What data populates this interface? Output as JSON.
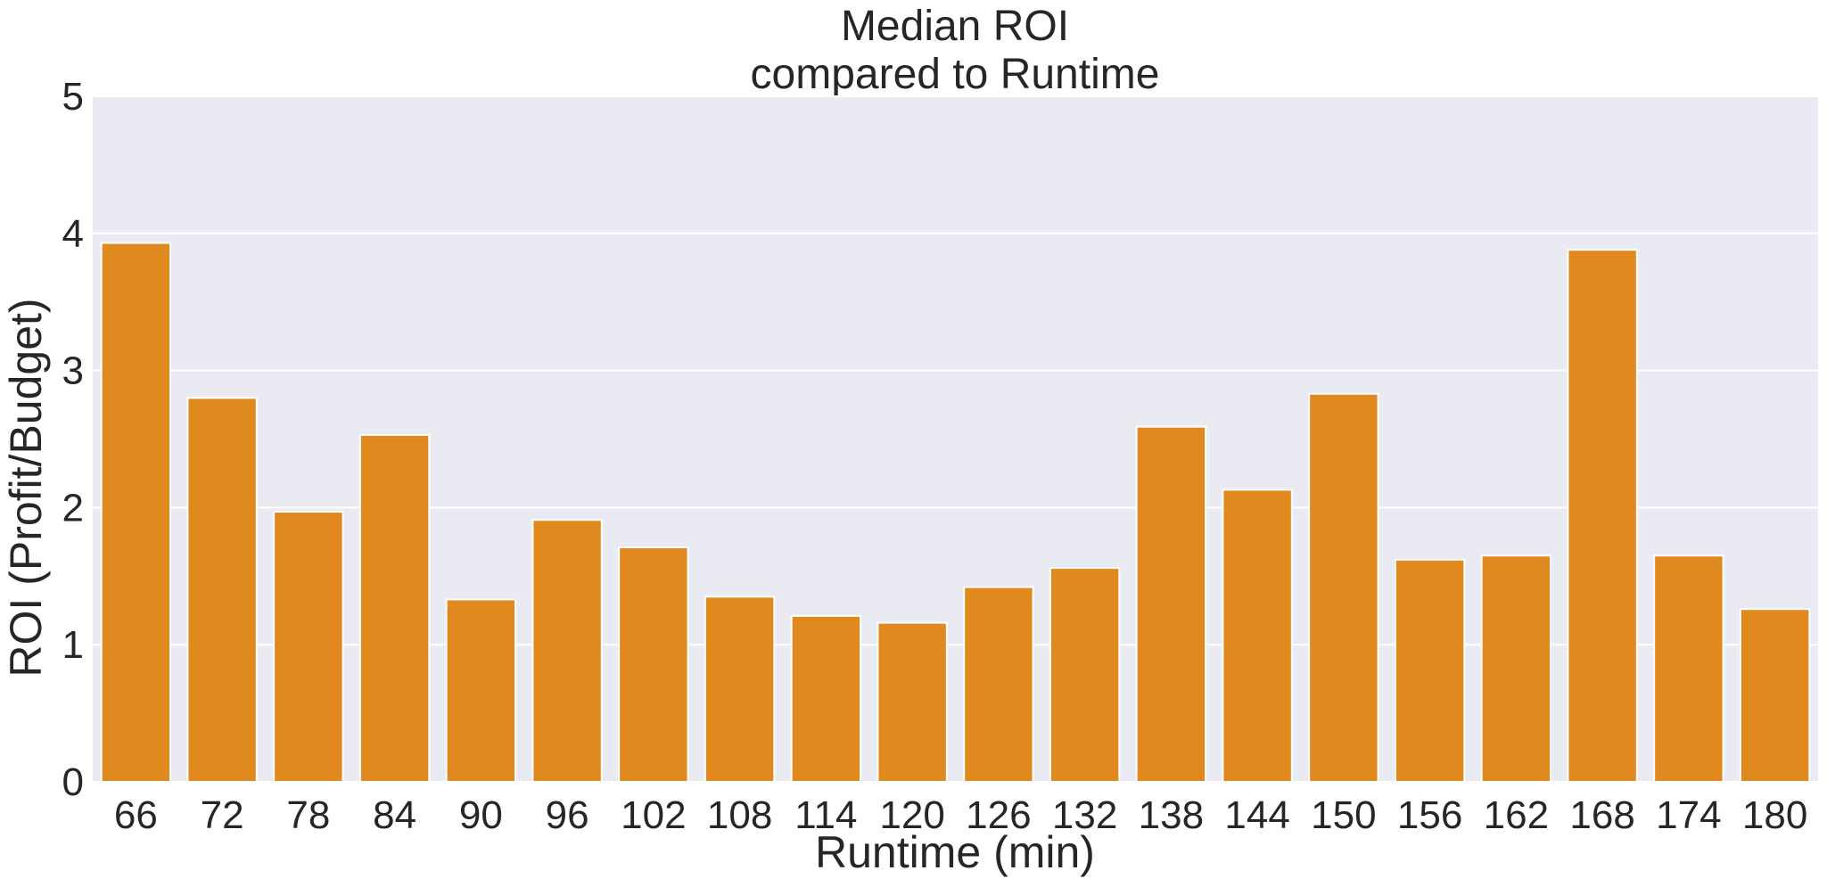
{
  "chart_data": {
    "type": "bar",
    "title_lines": [
      "Median ROI",
      "compared to Runtime"
    ],
    "xlabel": "Runtime (min)",
    "ylabel": "ROI (Profit/Budget)",
    "ylim": [
      0,
      5
    ],
    "yticks": [
      0,
      1,
      2,
      3,
      4,
      5
    ],
    "grid": true,
    "bar_color": "#e0891f",
    "background_color": "#eaeaf2",
    "categories": [
      "66",
      "72",
      "78",
      "84",
      "90",
      "96",
      "102",
      "108",
      "114",
      "120",
      "126",
      "132",
      "138",
      "144",
      "150",
      "156",
      "162",
      "168",
      "174",
      "180"
    ],
    "values": [
      3.93,
      2.8,
      1.97,
      2.53,
      1.33,
      1.91,
      1.71,
      1.35,
      1.21,
      1.16,
      1.42,
      1.56,
      2.59,
      2.13,
      2.83,
      1.62,
      1.65,
      3.88,
      1.65,
      1.26
    ]
  }
}
